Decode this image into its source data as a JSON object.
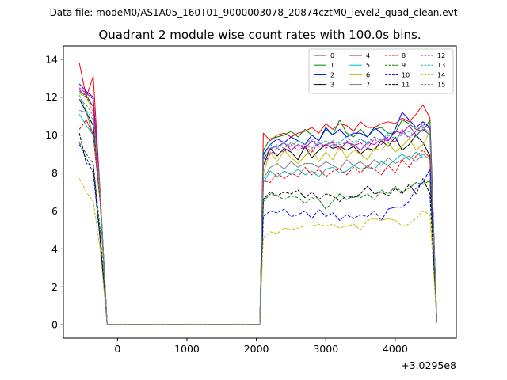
{
  "suptitle": "Data file: modeM0/AS1A05_160T01_9000003078_20874cztM0_level2_quad_clean.evt",
  "chart_data": {
    "type": "line",
    "title": "Quadrant 2 module wise count rates with 100.0s bins.",
    "xlabel": "",
    "ylabel": "",
    "x_offset_label": "+3.0295e8",
    "xlim": [
      -780,
      4880
    ],
    "ylim": [
      -0.7,
      14.7
    ],
    "x_ticks": [
      0,
      1000,
      2000,
      3000,
      4000
    ],
    "y_ticks": [
      0,
      2,
      4,
      6,
      8,
      10,
      12,
      14
    ],
    "grid": false,
    "legend_position": "top-right",
    "legend_columns": 4,
    "x": [
      -550,
      -450,
      -350,
      -250,
      -150,
      -50,
      50,
      150,
      250,
      350,
      450,
      550,
      650,
      750,
      850,
      950,
      1050,
      1150,
      1250,
      1350,
      1450,
      1550,
      1650,
      1750,
      1850,
      1950,
      2050,
      2100,
      2200,
      2300,
      2400,
      2500,
      2600,
      2700,
      2800,
      2900,
      3000,
      3100,
      3200,
      3300,
      3400,
      3500,
      3600,
      3700,
      3800,
      3900,
      4000,
      4100,
      4200,
      4300,
      4400,
      4500,
      4600
    ],
    "series": [
      {
        "name": "0",
        "color": "#ff0000",
        "dash": "solid",
        "values": [
          13.8,
          12.0,
          13.1,
          7.0,
          0.03,
          0.02,
          0.02,
          0.02,
          0.02,
          0.02,
          0.02,
          0.02,
          0.02,
          0.02,
          0.02,
          0.02,
          0.02,
          0.02,
          0.02,
          0.02,
          0.02,
          0.02,
          0.02,
          0.02,
          0.02,
          0.02,
          0.02,
          10.1,
          9.7,
          10.0,
          10.1,
          9.9,
          10.1,
          10.2,
          10.4,
          10.1,
          10.6,
          10.3,
          10.6,
          10.5,
          10.2,
          10.7,
          10.4,
          10.4,
          10.6,
          10.7,
          10.6,
          10.9,
          10.7,
          11.1,
          11.6,
          10.9,
          0.1
        ]
      },
      {
        "name": "1",
        "color": "#008000",
        "dash": "solid",
        "values": [
          12.3,
          12.1,
          11.5,
          7.0,
          0.03,
          0.02,
          0.02,
          0.02,
          0.02,
          0.02,
          0.02,
          0.02,
          0.02,
          0.02,
          0.02,
          0.02,
          0.02,
          0.02,
          0.02,
          0.02,
          0.02,
          0.02,
          0.02,
          0.02,
          0.02,
          0.02,
          0.02,
          9.2,
          9.8,
          9.9,
          10.0,
          10.2,
          9.9,
          10.3,
          10.0,
          9.7,
          10.3,
          10.0,
          10.8,
          10.1,
          9.9,
          10.3,
          9.9,
          10.3,
          10.4,
          10.1,
          10.1,
          10.8,
          10.6,
          10.3,
          10.2,
          10.8,
          0.1
        ]
      },
      {
        "name": "2",
        "color": "#0000ff",
        "dash": "solid",
        "values": [
          12.7,
          12.3,
          12.0,
          7.0,
          0.03,
          0.02,
          0.02,
          0.02,
          0.02,
          0.02,
          0.02,
          0.02,
          0.02,
          0.02,
          0.02,
          0.02,
          0.02,
          0.02,
          0.02,
          0.02,
          0.02,
          0.02,
          0.02,
          0.02,
          0.02,
          0.02,
          0.02,
          9.0,
          9.5,
          9.8,
          9.6,
          9.9,
          9.7,
          9.5,
          10.0,
          9.7,
          10.4,
          10.0,
          10.3,
          9.9,
          10.1,
          10.1,
          9.9,
          10.4,
          10.1,
          9.7,
          10.3,
          11.2,
          10.8,
          10.4,
          10.7,
          10.4,
          0.1
        ]
      },
      {
        "name": "3",
        "color": "#000000",
        "dash": "solid",
        "values": [
          11.9,
          11.2,
          10.5,
          7.0,
          0.03,
          0.02,
          0.02,
          0.02,
          0.02,
          0.02,
          0.02,
          0.02,
          0.02,
          0.02,
          0.02,
          0.02,
          0.02,
          0.02,
          0.02,
          0.02,
          0.02,
          0.02,
          0.02,
          0.02,
          0.02,
          0.02,
          0.02,
          8.4,
          9.3,
          8.9,
          9.3,
          9.1,
          8.7,
          9.4,
          8.8,
          9.2,
          9.5,
          9.3,
          9.4,
          9.2,
          9.4,
          9.0,
          9.3,
          9.2,
          9.7,
          9.4,
          9.9,
          9.2,
          9.5,
          10.0,
          9.6,
          8.9,
          0.1
        ]
      },
      {
        "name": "4",
        "color": "#bf00bf",
        "dash": "solid",
        "values": [
          12.5,
          12.2,
          11.9,
          7.0,
          0.03,
          0.02,
          0.02,
          0.02,
          0.02,
          0.02,
          0.02,
          0.02,
          0.02,
          0.02,
          0.02,
          0.02,
          0.02,
          0.02,
          0.02,
          0.02,
          0.02,
          0.02,
          0.02,
          0.02,
          0.02,
          0.02,
          0.02,
          8.7,
          9.3,
          9.4,
          9.6,
          9.2,
          9.5,
          9.3,
          9.7,
          9.4,
          9.5,
          9.6,
          9.3,
          9.6,
          9.5,
          9.2,
          9.6,
          9.5,
          9.8,
          9.7,
          10.2,
          10.1,
          10.5,
          10.0,
          10.3,
          10.0,
          0.1
        ]
      },
      {
        "name": "5",
        "color": "#00bfbf",
        "dash": "solid",
        "values": [
          11.1,
          10.5,
          10.0,
          6.5,
          0.03,
          0.02,
          0.02,
          0.02,
          0.02,
          0.02,
          0.02,
          0.02,
          0.02,
          0.02,
          0.02,
          0.02,
          0.02,
          0.02,
          0.02,
          0.02,
          0.02,
          0.02,
          0.02,
          0.02,
          0.02,
          0.02,
          0.02,
          7.5,
          8.1,
          7.8,
          8.1,
          7.9,
          8.2,
          7.9,
          8.1,
          7.8,
          8.2,
          8.3,
          8.0,
          8.1,
          8.4,
          8.2,
          8.3,
          8.2,
          8.6,
          8.4,
          8.7,
          9.0,
          8.7,
          9.1,
          8.8,
          8.8,
          0.1
        ]
      },
      {
        "name": "6",
        "color": "#bfbf00",
        "dash": "solid",
        "values": [
          12.2,
          12.0,
          11.2,
          7.0,
          0.03,
          0.02,
          0.02,
          0.02,
          0.02,
          0.02,
          0.02,
          0.02,
          0.02,
          0.02,
          0.02,
          0.02,
          0.02,
          0.02,
          0.02,
          0.02,
          0.02,
          0.02,
          0.02,
          0.02,
          0.02,
          0.02,
          0.02,
          8.0,
          9.1,
          8.6,
          9.2,
          8.8,
          8.5,
          8.9,
          9.3,
          8.6,
          9.1,
          8.7,
          9.4,
          8.8,
          9.2,
          9.0,
          8.7,
          9.3,
          9.2,
          9.6,
          9.1,
          9.4,
          9.8,
          9.2,
          9.5,
          10.2,
          0.1
        ]
      },
      {
        "name": "7",
        "color": "#808080",
        "dash": "solid",
        "values": [
          11.3,
          11.2,
          10.0,
          6.5,
          0.03,
          0.02,
          0.02,
          0.02,
          0.02,
          0.02,
          0.02,
          0.02,
          0.02,
          0.02,
          0.02,
          0.02,
          0.02,
          0.02,
          0.02,
          0.02,
          0.02,
          0.02,
          0.02,
          0.02,
          0.02,
          0.02,
          0.02,
          7.7,
          8.3,
          8.5,
          8.2,
          8.6,
          8.3,
          8.5,
          8.5,
          8.3,
          8.6,
          8.4,
          8.2,
          8.7,
          8.4,
          8.6,
          8.3,
          8.7,
          8.4,
          8.8,
          8.5,
          8.7,
          8.9,
          8.6,
          9.0,
          8.7,
          0.1
        ]
      },
      {
        "name": "8",
        "color": "#ff0000",
        "dash": "dashed",
        "values": [
          10.3,
          10.8,
          10.0,
          6.5,
          0.03,
          0.02,
          0.02,
          0.02,
          0.02,
          0.02,
          0.02,
          0.02,
          0.02,
          0.02,
          0.02,
          0.02,
          0.02,
          0.02,
          0.02,
          0.02,
          0.02,
          0.02,
          0.02,
          0.02,
          0.02,
          0.02,
          0.02,
          7.6,
          7.5,
          8.0,
          7.7,
          8.0,
          7.8,
          8.3,
          7.9,
          8.2,
          7.8,
          8.1,
          8.2,
          7.9,
          8.3,
          8.0,
          8.4,
          8.2,
          7.9,
          8.4,
          8.0,
          8.7,
          8.3,
          8.9,
          9.2,
          8.8,
          0.1
        ]
      },
      {
        "name": "9",
        "color": "#008000",
        "dash": "dashed",
        "values": [
          9.6,
          9.0,
          8.5,
          5.0,
          0.03,
          0.02,
          0.02,
          0.02,
          0.02,
          0.02,
          0.02,
          0.02,
          0.02,
          0.02,
          0.02,
          0.02,
          0.02,
          0.02,
          0.02,
          0.02,
          0.02,
          0.02,
          0.02,
          0.02,
          0.02,
          0.02,
          0.02,
          6.5,
          6.9,
          6.8,
          6.6,
          6.8,
          6.7,
          6.4,
          6.7,
          6.6,
          6.1,
          6.5,
          6.9,
          6.6,
          6.8,
          6.7,
          6.9,
          6.6,
          7.1,
          6.9,
          7.3,
          7.0,
          7.2,
          7.5,
          7.4,
          7.6,
          0.1
        ]
      },
      {
        "name": "10",
        "color": "#0000ff",
        "dash": "dashed",
        "values": [
          9.5,
          8.8,
          8.0,
          4.5,
          0.03,
          0.02,
          0.02,
          0.02,
          0.02,
          0.02,
          0.02,
          0.02,
          0.02,
          0.02,
          0.02,
          0.02,
          0.02,
          0.02,
          0.02,
          0.02,
          0.02,
          0.02,
          0.02,
          0.02,
          0.02,
          0.02,
          0.02,
          5.7,
          6.0,
          5.9,
          6.1,
          5.7,
          5.8,
          6.0,
          5.6,
          6.1,
          5.7,
          5.9,
          5.5,
          5.8,
          5.6,
          5.8,
          5.7,
          6.0,
          5.5,
          6.1,
          6.2,
          6.2,
          6.5,
          7.2,
          7.5,
          8.2,
          0.1
        ]
      },
      {
        "name": "11",
        "color": "#000000",
        "dash": "dashed",
        "values": [
          10.1,
          8.5,
          8.4,
          4.5,
          0.03,
          0.02,
          0.02,
          0.02,
          0.02,
          0.02,
          0.02,
          0.02,
          0.02,
          0.02,
          0.02,
          0.02,
          0.02,
          0.02,
          0.02,
          0.02,
          0.02,
          0.02,
          0.02,
          0.02,
          0.02,
          0.02,
          0.02,
          6.6,
          7.0,
          6.8,
          7.0,
          6.9,
          7.1,
          6.7,
          7.0,
          6.6,
          6.9,
          6.8,
          6.5,
          6.8,
          6.7,
          6.9,
          7.3,
          6.9,
          7.0,
          6.8,
          7.2,
          6.9,
          7.4,
          6.9,
          7.7,
          6.9,
          0.1
        ]
      },
      {
        "name": "12",
        "color": "#bf00bf",
        "dash": "dashed",
        "values": [
          12.4,
          12.0,
          11.5,
          7.0,
          0.03,
          0.02,
          0.02,
          0.02,
          0.02,
          0.02,
          0.02,
          0.02,
          0.02,
          0.02,
          0.02,
          0.02,
          0.02,
          0.02,
          0.02,
          0.02,
          0.02,
          0.02,
          0.02,
          0.02,
          0.02,
          0.02,
          0.02,
          8.4,
          9.0,
          9.3,
          9.1,
          9.5,
          9.2,
          9.4,
          9.1,
          9.6,
          9.3,
          9.5,
          9.2,
          9.7,
          9.4,
          9.6,
          9.3,
          9.8,
          9.5,
          9.9,
          9.6,
          10.3,
          9.8,
          10.2,
          10.6,
          10.3,
          0.1
        ]
      },
      {
        "name": "13",
        "color": "#00bfbf",
        "dash": "dashed",
        "values": [
          12.1,
          11.3,
          10.8,
          7.0,
          0.03,
          0.02,
          0.02,
          0.02,
          0.02,
          0.02,
          0.02,
          0.02,
          0.02,
          0.02,
          0.02,
          0.02,
          0.02,
          0.02,
          0.02,
          0.02,
          0.02,
          0.02,
          0.02,
          0.02,
          0.02,
          0.02,
          0.02,
          8.9,
          9.5,
          9.3,
          9.6,
          9.4,
          9.7,
          9.5,
          9.8,
          9.5,
          9.7,
          9.4,
          9.6,
          9.9,
          9.6,
          9.8,
          9.5,
          9.9,
          9.7,
          10.1,
          9.8,
          10.0,
          10.2,
          9.9,
          10.4,
          10.1,
          0.1
        ]
      },
      {
        "name": "14",
        "color": "#bfbf00",
        "dash": "dashed",
        "values": [
          7.7,
          7.0,
          6.5,
          4.0,
          0.03,
          0.02,
          0.02,
          0.02,
          0.02,
          0.02,
          0.02,
          0.02,
          0.02,
          0.02,
          0.02,
          0.02,
          0.02,
          0.02,
          0.02,
          0.02,
          0.02,
          0.02,
          0.02,
          0.02,
          0.02,
          0.02,
          0.02,
          4.6,
          4.9,
          4.8,
          5.1,
          5.0,
          5.1,
          5.2,
          5.2,
          5.3,
          5.2,
          5.3,
          5.1,
          5.2,
          5.3,
          5.0,
          5.5,
          5.6,
          5.5,
          5.6,
          5.5,
          5.2,
          5.3,
          5.6,
          6.0,
          5.8,
          0.1
        ]
      },
      {
        "name": "15",
        "color": "#808080",
        "dash": "dashed",
        "values": [
          11.9,
          11.6,
          11.0,
          7.0,
          0.03,
          0.02,
          0.02,
          0.02,
          0.02,
          0.02,
          0.02,
          0.02,
          0.02,
          0.02,
          0.02,
          0.02,
          0.02,
          0.02,
          0.02,
          0.02,
          0.02,
          0.02,
          0.02,
          0.02,
          0.02,
          0.02,
          0.02,
          8.8,
          9.2,
          9.5,
          9.3,
          9.6,
          9.4,
          9.5,
          9.3,
          9.6,
          9.4,
          9.7,
          9.5,
          9.6,
          9.4,
          9.8,
          9.6,
          9.9,
          9.7,
          10.0,
          9.8,
          10.1,
          9.9,
          10.2,
          10.5,
          9.9,
          0.1
        ]
      }
    ]
  }
}
